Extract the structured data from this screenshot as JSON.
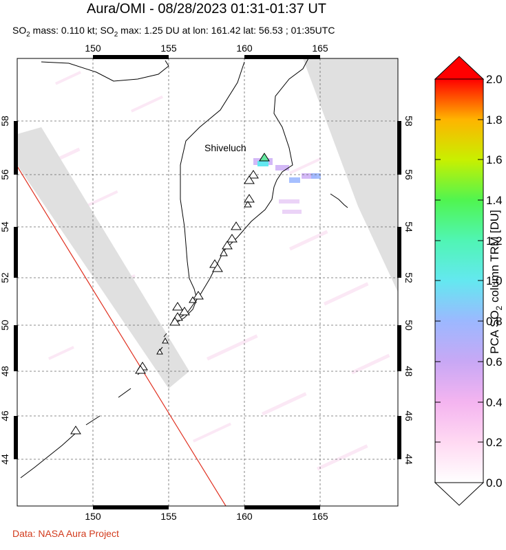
{
  "header": {
    "title": "Aura/OMI - 08/28/2023 01:31-01:37 UT",
    "subtitle_prefix": "SO",
    "subtitle_mid1": " mass: 0.110 kt; SO",
    "subtitle_rest": " max: 1.25 DU at lon: 161.42 lat: 56.53 ; 01:35UTC",
    "subscript": "2"
  },
  "map": {
    "lon_ticks": [
      "150",
      "155",
      "160",
      "165"
    ],
    "lat_ticks": [
      "44",
      "46",
      "48",
      "50",
      "52",
      "54",
      "56",
      "58"
    ],
    "volcano_label": "Shiveluch",
    "volcano_count": 22
  },
  "colorbar": {
    "ticks": [
      "0.0",
      "0.2",
      "0.4",
      "0.6",
      "0.8",
      "1.0",
      "1.2",
      "1.4",
      "1.6",
      "1.8",
      "2.0"
    ],
    "title_prefix": "PCA SO",
    "title_subscript": "2",
    "title_suffix": " column TRM [DU]",
    "colors": [
      "#ffffff",
      "#ffd9f2",
      "#f4b4f0",
      "#c8a8f5",
      "#9cb8ff",
      "#64e8f0",
      "#50f5b4",
      "#50f550",
      "#a0f000",
      "#f0f000",
      "#ffb400",
      "#ff5000",
      "#ff0000"
    ]
  },
  "footer": {
    "credit": "Data: NASA Aura Project"
  }
}
